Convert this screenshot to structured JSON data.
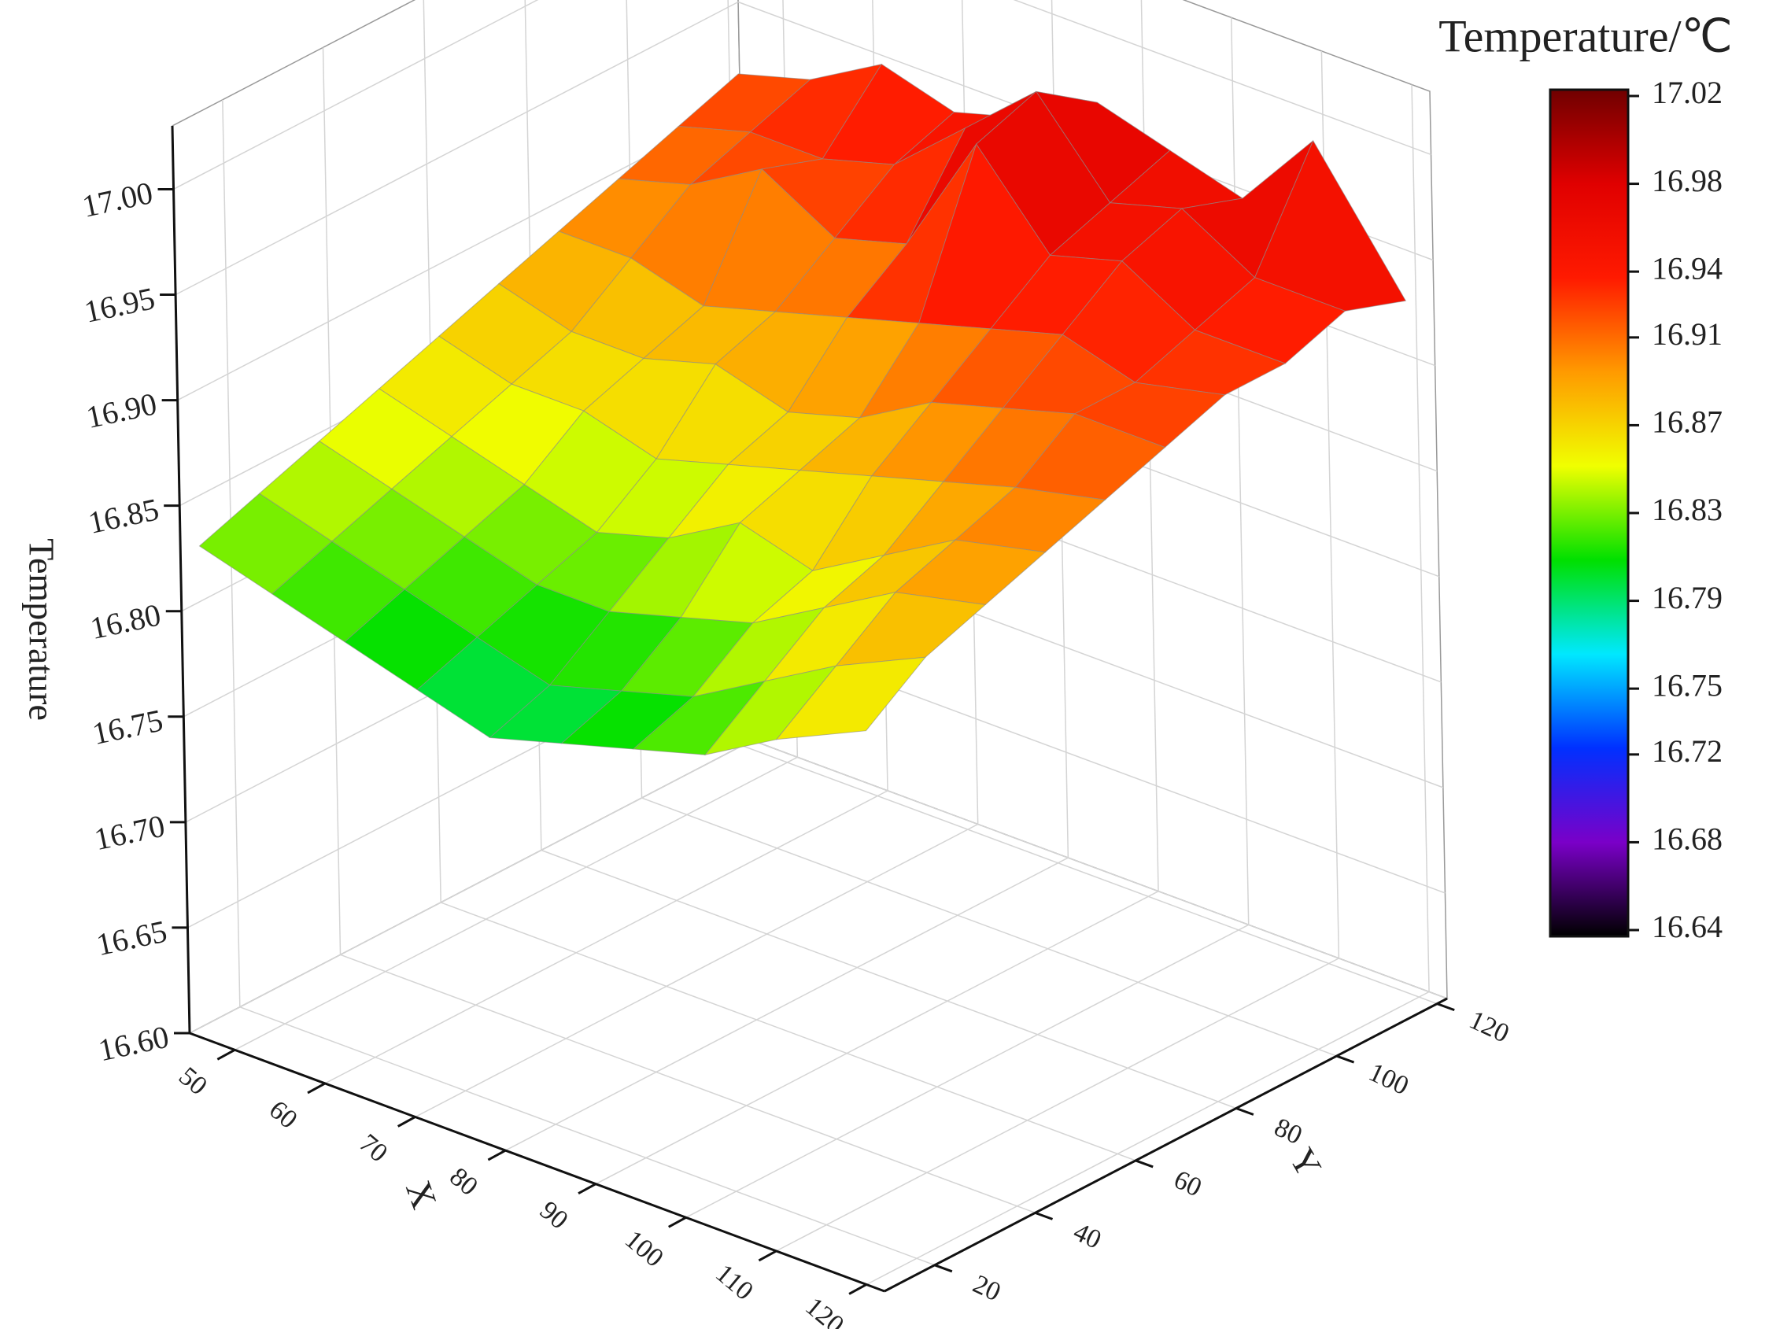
{
  "chart_data": {
    "type": "surface",
    "xlabel": "X",
    "ylabel": "Y",
    "zlabel": "Temperature",
    "colorbar_title": "Temperature/℃",
    "x": [
      46,
      54,
      62,
      70,
      78,
      86,
      94,
      102,
      110,
      120
    ],
    "y": [
      12,
      24,
      36,
      48,
      60,
      72,
      84,
      96,
      108,
      120
    ],
    "z": [
      [
        16.83,
        16.82,
        16.81,
        16.8,
        16.79,
        16.8,
        16.81,
        16.82,
        16.84,
        16.86
      ],
      [
        16.84,
        16.83,
        16.82,
        16.81,
        16.8,
        16.81,
        16.82,
        16.84,
        16.86,
        16.88
      ],
      [
        16.85,
        16.84,
        16.83,
        16.82,
        16.82,
        16.83,
        16.84,
        16.86,
        16.88,
        16.89
      ],
      [
        16.86,
        16.85,
        16.84,
        16.83,
        16.84,
        16.86,
        16.85,
        16.87,
        16.89,
        16.9
      ],
      [
        16.87,
        16.86,
        16.86,
        16.85,
        16.86,
        16.87,
        16.88,
        16.89,
        16.9,
        16.91
      ],
      [
        16.88,
        16.87,
        16.87,
        16.88,
        16.87,
        16.88,
        16.9,
        16.91,
        16.92,
        16.92
      ],
      [
        16.89,
        16.89,
        16.88,
        16.89,
        16.9,
        16.91,
        16.92,
        16.93,
        16.92,
        16.93
      ],
      [
        16.9,
        16.91,
        16.93,
        16.91,
        16.92,
        16.98,
        16.94,
        16.95,
        16.93,
        16.93
      ],
      [
        16.91,
        16.92,
        16.92,
        16.93,
        16.96,
        16.99,
        16.95,
        16.96,
        16.94,
        16.94
      ],
      [
        16.92,
        16.93,
        16.95,
        16.94,
        16.95,
        16.97,
        16.96,
        16.95,
        16.99,
        16.93
      ]
    ],
    "xlim": [
      45,
      122
    ],
    "ylim": [
      10,
      122
    ],
    "zlim": [
      16.6,
      17.03
    ],
    "xticks": [
      50,
      60,
      70,
      80,
      90,
      100,
      110,
      120
    ],
    "yticks": [
      20,
      40,
      60,
      80,
      100,
      120
    ],
    "zticks": [
      {
        "value": 16.6,
        "label": "16.60"
      },
      16.65,
      {
        "value": 16.7,
        "label": "16.70"
      },
      16.75,
      {
        "value": 16.8,
        "label": "16.80"
      },
      16.85,
      {
        "value": 16.9,
        "label": "16.90"
      },
      16.95,
      {
        "value": 17.0,
        "label": "17.00"
      }
    ],
    "cblim": [
      16.64,
      17.02
    ],
    "cbticks": [
      17.02,
      16.98,
      16.94,
      16.91,
      16.87,
      16.83,
      16.79,
      16.75,
      16.72,
      16.68,
      16.64
    ],
    "colormap": [
      "#000000",
      "#7a00c8",
      "#0030ff",
      "#00e8ff",
      "#00e000",
      "#f0ff00",
      "#ff9a00",
      "#ff1a00",
      "#e00000",
      "#700000"
    ],
    "grid": true
  }
}
